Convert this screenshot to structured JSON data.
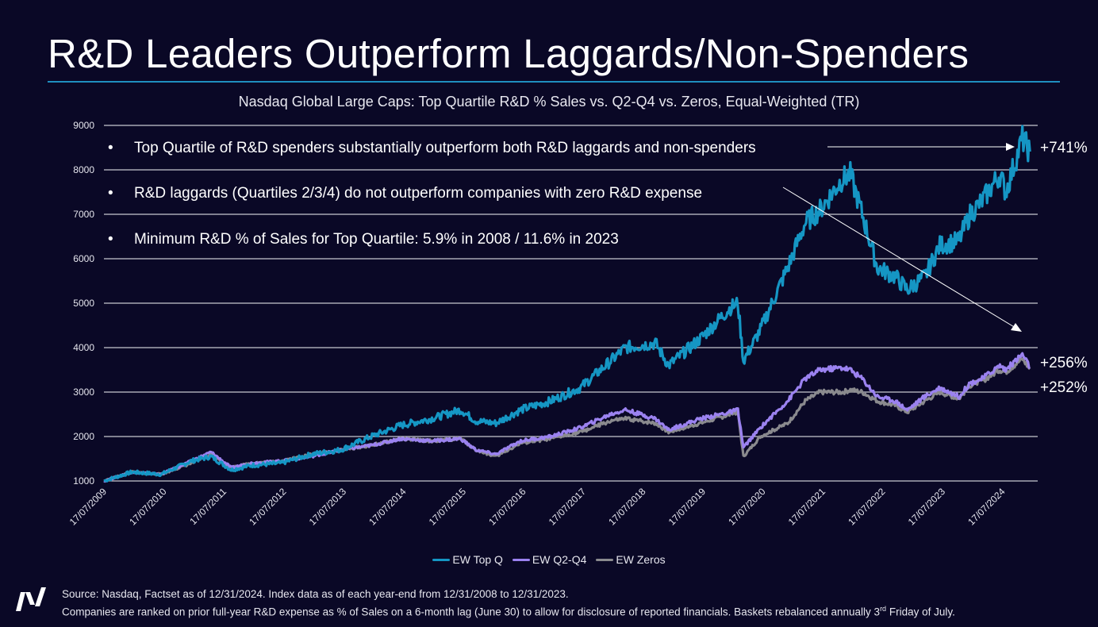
{
  "title": "R&D Leaders Outperform Laggards/Non-Spenders",
  "colors": {
    "background": "#0a0826",
    "accent_rule": "#1f8fc0",
    "grid": "#c8c8d0"
  },
  "chart_data": {
    "type": "line",
    "title": "Nasdaq Global Large Caps: Top Quartile R&D % Sales vs. Q2-Q4 vs. Zeros, Equal-Weighted (TR)",
    "xlabel": "",
    "ylabel": "",
    "ylim": [
      1000,
      9000
    ],
    "yticks": [
      "1000",
      "2000",
      "3000",
      "4000",
      "5000",
      "6000",
      "7000",
      "8000",
      "9000"
    ],
    "xticks": [
      "17/07/2009",
      "17/07/2010",
      "17/07/2011",
      "17/07/2012",
      "17/07/2013",
      "17/07/2014",
      "17/07/2015",
      "17/07/2016",
      "17/07/2017",
      "17/07/2018",
      "17/07/2019",
      "17/07/2020",
      "17/07/2021",
      "17/07/2022",
      "17/07/2023",
      "17/07/2024"
    ],
    "grid": "horizontal",
    "legend_position": "bottom",
    "x": [
      "2009-07-17",
      "2010-01-01",
      "2010-07-01",
      "2011-01-01",
      "2011-05-01",
      "2011-09-01",
      "2012-01-01",
      "2012-07-01",
      "2013-01-01",
      "2013-07-01",
      "2014-01-01",
      "2014-07-01",
      "2015-01-01",
      "2015-07-01",
      "2015-10-01",
      "2016-02-01",
      "2016-07-01",
      "2017-01-01",
      "2017-07-01",
      "2018-01-01",
      "2018-04-01",
      "2018-10-01",
      "2018-12-20",
      "2019-07-01",
      "2020-01-01",
      "2020-02-15",
      "2020-03-20",
      "2020-07-01",
      "2020-12-15",
      "2021-04-01",
      "2021-07-01",
      "2021-11-15",
      "2022-01-01",
      "2022-03-15",
      "2022-06-15",
      "2022-10-01",
      "2022-12-15",
      "2023-04-01",
      "2023-07-01",
      "2023-10-25",
      "2024-01-01",
      "2024-03-15",
      "2024-07-01",
      "2024-08-05",
      "2024-11-15",
      "2024-12-31"
    ],
    "series": [
      {
        "name": "EW Top Q",
        "color": "#1596c4",
        "end_label": "+741%",
        "values": [
          1000,
          1200,
          1150,
          1450,
          1550,
          1250,
          1350,
          1400,
          1600,
          1700,
          2000,
          2250,
          2400,
          2600,
          2350,
          2300,
          2600,
          2800,
          3100,
          3700,
          4000,
          4100,
          3600,
          4200,
          4900,
          5000,
          3700,
          4400,
          5800,
          6800,
          7100,
          7800,
          7900,
          7000,
          5800,
          5600,
          5300,
          5600,
          6300,
          6400,
          7000,
          7300,
          7900,
          7500,
          8700,
          8410
        ]
      },
      {
        "name": "EW Q2-Q4",
        "color": "#9b82f0",
        "end_label": "+256%",
        "values": [
          1000,
          1200,
          1150,
          1450,
          1650,
          1300,
          1400,
          1450,
          1550,
          1700,
          1800,
          1950,
          1900,
          1950,
          1700,
          1600,
          1900,
          2000,
          2200,
          2500,
          2600,
          2400,
          2150,
          2400,
          2550,
          2600,
          1750,
          2200,
          2800,
          3300,
          3500,
          3550,
          3500,
          3300,
          2900,
          2800,
          2600,
          2900,
          3100,
          2900,
          3200,
          3300,
          3600,
          3500,
          3850,
          3560
        ]
      },
      {
        "name": "EW Zeros",
        "color": "#8a8a8e",
        "end_label": "+252%",
        "values": [
          1000,
          1200,
          1150,
          1400,
          1600,
          1300,
          1400,
          1450,
          1600,
          1700,
          1800,
          1950,
          1900,
          1950,
          1700,
          1550,
          1850,
          1950,
          2100,
          2350,
          2400,
          2300,
          2100,
          2300,
          2500,
          2550,
          1550,
          2000,
          2300,
          2800,
          3000,
          3000,
          3050,
          3000,
          2800,
          2700,
          2550,
          2800,
          3000,
          2850,
          3150,
          3250,
          3500,
          3450,
          3750,
          3520
        ]
      }
    ],
    "annotations": [
      "Top Quartile of R&D spenders substantially outperform both R&D laggards and non-spenders",
      "R&D laggards (Quartiles 2/3/4) do not outperform companies with zero R&D expense",
      "Minimum R&D % of Sales for Top Quartile: 5.9% in 2008 / 11.6% in 2023"
    ],
    "bullet_glyph": "•"
  },
  "footer": {
    "line1": "Source: Nasdaq, Factset as of 12/31/2024. Index data as of each year-end from 12/31/2008 to 12/31/2023.",
    "line2_pre": "Companies are ranked on prior full-year R&D expense as % of Sales on a 6-month lag (June 30) to allow for disclosure of reported financials. Baskets rebalanced annually 3",
    "line2_sup": "rd",
    "line2_post": " Friday of July."
  },
  "logo": "Nasdaq"
}
